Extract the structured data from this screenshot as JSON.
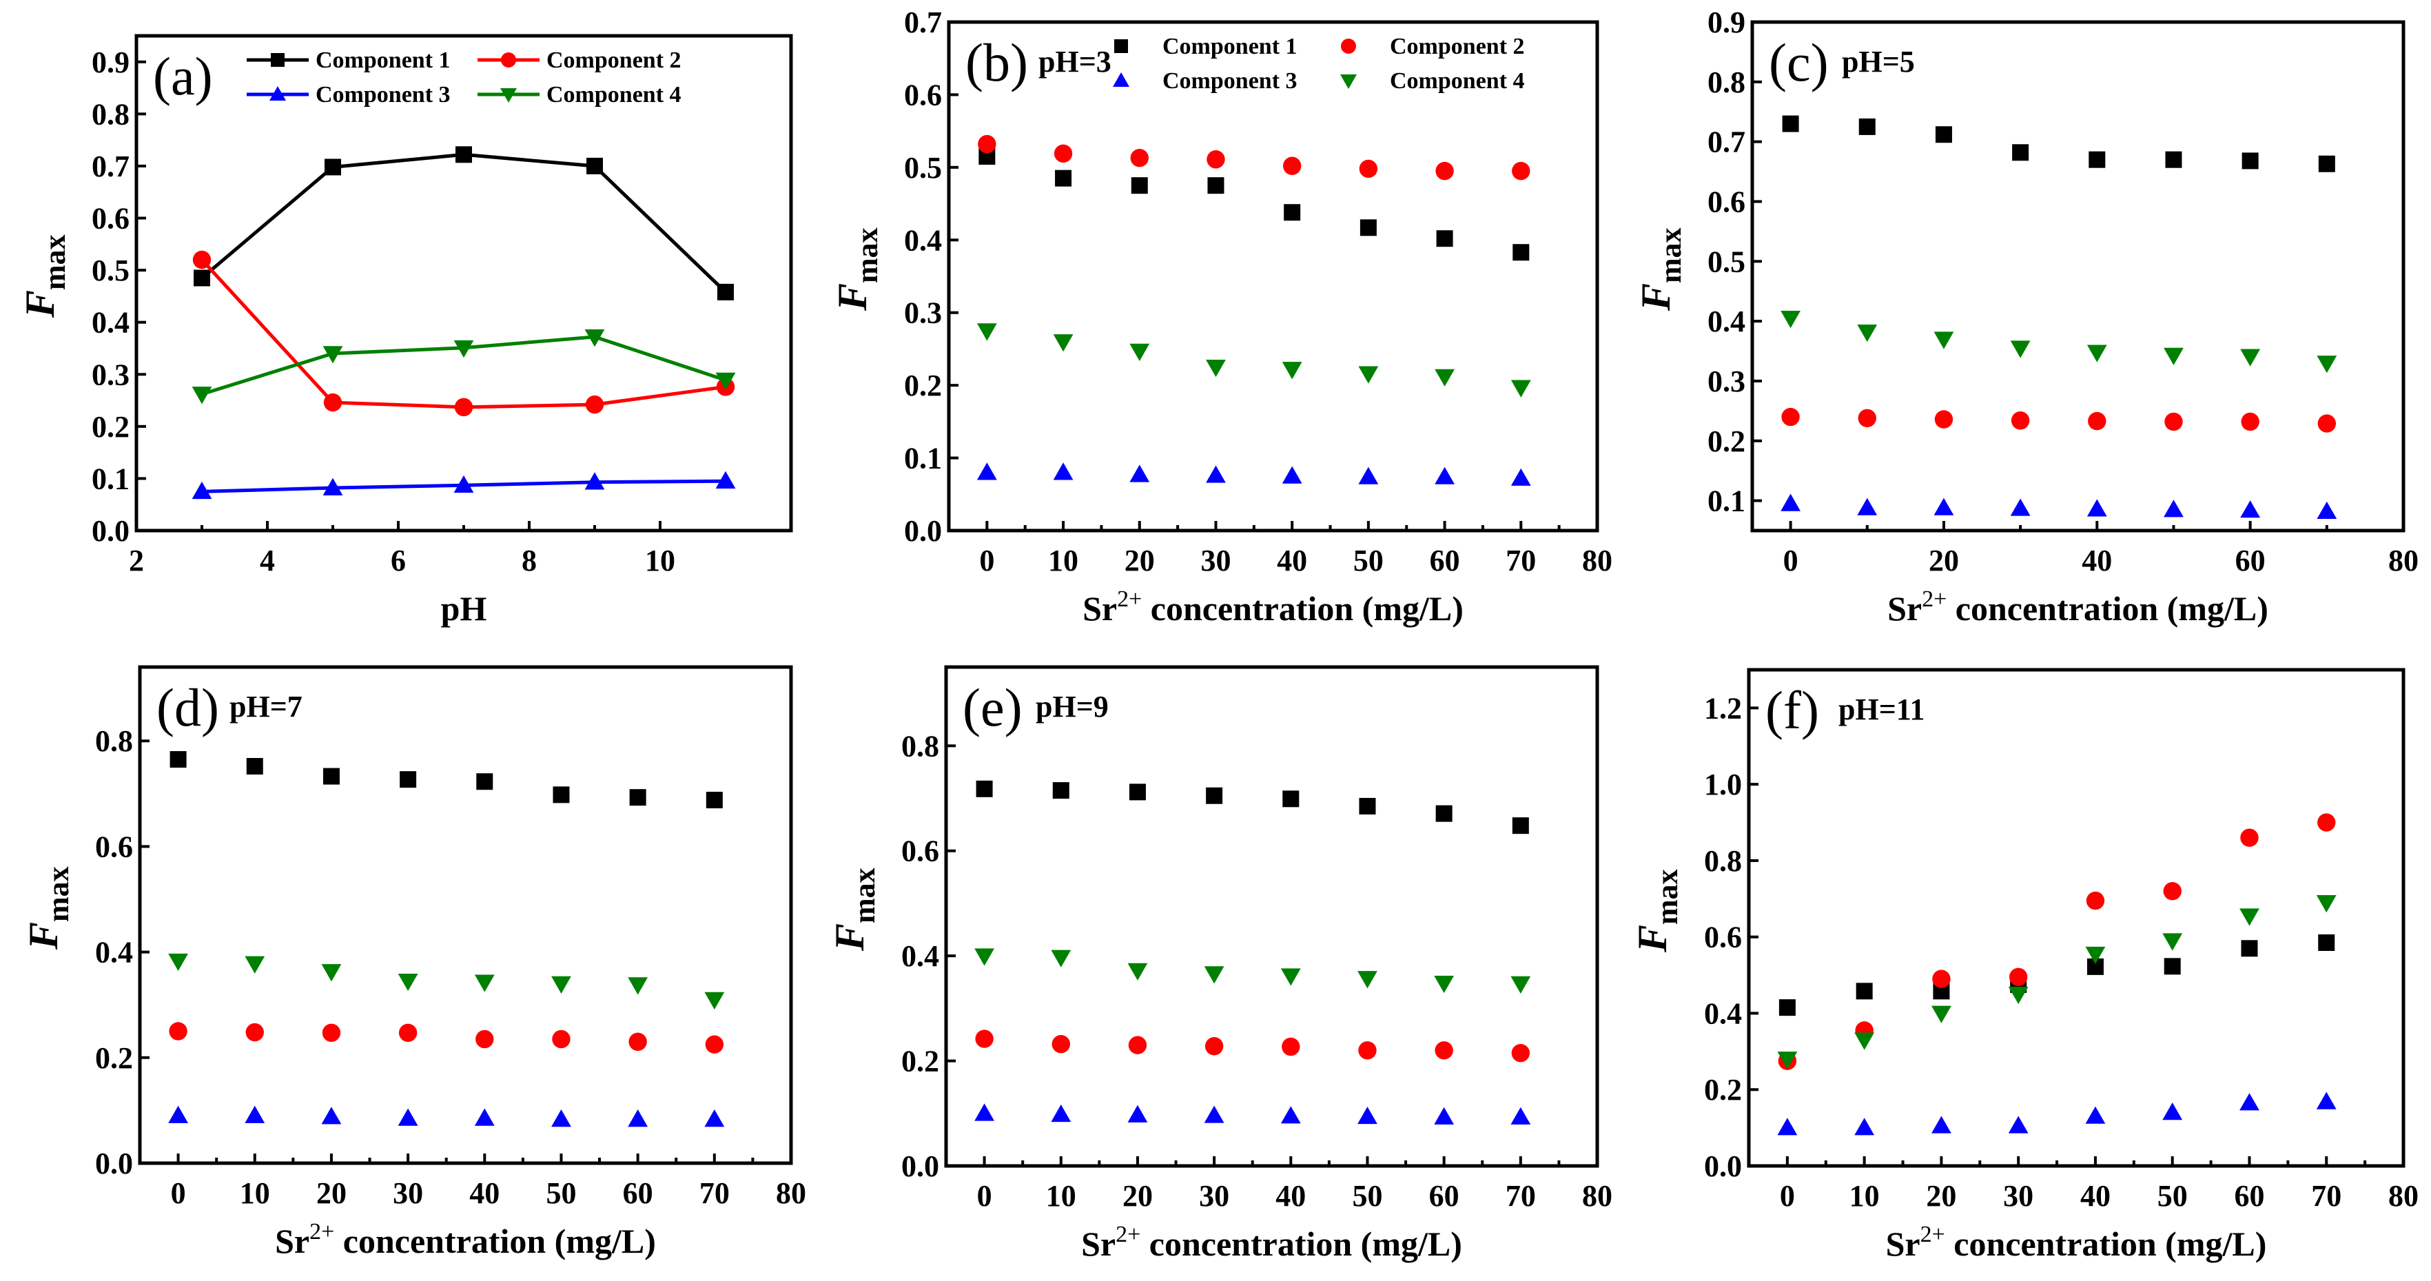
{
  "colors": {
    "c1": "#000000",
    "c2": "#ff0000",
    "c3": "#0000ff",
    "c4": "#008000"
  },
  "legend_labels": [
    "Component 1",
    "Component 2",
    "Component 3",
    "Component 4"
  ],
  "ylabel_main": "F",
  "ylabel_sub": "max",
  "chart_data": [
    {
      "type": "line",
      "panel": "(a)",
      "subtitle": "",
      "xlabel": "pH",
      "xlim": [
        2,
        12
      ],
      "xticks": [
        2,
        4,
        6,
        8,
        10
      ],
      "ylim": [
        0,
        0.95
      ],
      "yticks": [
        0.0,
        0.1,
        0.2,
        0.3,
        0.4,
        0.5,
        0.6,
        0.7,
        0.8,
        0.9
      ],
      "legend": "top-right",
      "legend_style": "line",
      "x": [
        3,
        5,
        7,
        9,
        11
      ],
      "series": [
        {
          "name": "Component 1",
          "values": [
            0.485,
            0.698,
            0.722,
            0.7,
            0.458
          ]
        },
        {
          "name": "Component 2",
          "values": [
            0.52,
            0.246,
            0.237,
            0.242,
            0.276
          ]
        },
        {
          "name": "Component 3",
          "values": [
            0.075,
            0.082,
            0.087,
            0.093,
            0.095
          ]
        },
        {
          "name": "Component 4",
          "values": [
            0.262,
            0.34,
            0.351,
            0.372,
            0.289
          ]
        }
      ]
    },
    {
      "type": "scatter",
      "panel": "(b)",
      "subtitle": "pH=3",
      "xlabel": "Sr2+ concentration (mg/L)",
      "xlim": [
        -5,
        80
      ],
      "xticks": [
        0,
        10,
        20,
        30,
        40,
        50,
        60,
        70,
        80
      ],
      "ylim": [
        0,
        0.7
      ],
      "yticks": [
        0.0,
        0.1,
        0.2,
        0.3,
        0.4,
        0.5,
        0.6,
        0.7
      ],
      "legend": "top-right",
      "legend_style": "marker",
      "x": [
        0,
        10,
        20,
        30,
        40,
        50,
        60,
        70
      ],
      "series": [
        {
          "name": "Component 1",
          "values": [
            0.515,
            0.485,
            0.475,
            0.475,
            0.438,
            0.417,
            0.402,
            0.383
          ]
        },
        {
          "name": "Component 2",
          "values": [
            0.532,
            0.519,
            0.513,
            0.511,
            0.502,
            0.498,
            0.495,
            0.495
          ]
        },
        {
          "name": "Component 3",
          "values": [
            0.08,
            0.08,
            0.077,
            0.076,
            0.075,
            0.074,
            0.074,
            0.072
          ]
        },
        {
          "name": "Component 4",
          "values": [
            0.275,
            0.26,
            0.247,
            0.225,
            0.222,
            0.216,
            0.212,
            0.197
          ]
        }
      ]
    },
    {
      "type": "scatter",
      "panel": "(c)",
      "subtitle": "pH=5",
      "xlabel": "Sr2+ concentration (mg/L)",
      "xlim": [
        -5,
        80
      ],
      "xticks": [
        0,
        20,
        40,
        60,
        80
      ],
      "ylim": [
        0.05,
        0.9
      ],
      "yticks": [
        0.1,
        0.2,
        0.3,
        0.4,
        0.5,
        0.6,
        0.7,
        0.8,
        0.9
      ],
      "legend": "none",
      "x": [
        0,
        10,
        20,
        30,
        40,
        50,
        60,
        70
      ],
      "series": [
        {
          "name": "Component 1",
          "values": [
            0.73,
            0.725,
            0.712,
            0.682,
            0.67,
            0.67,
            0.668,
            0.663
          ]
        },
        {
          "name": "Component 2",
          "values": [
            0.24,
            0.238,
            0.236,
            0.234,
            0.233,
            0.232,
            0.232,
            0.229
          ]
        },
        {
          "name": "Component 3",
          "values": [
            0.095,
            0.088,
            0.088,
            0.087,
            0.086,
            0.085,
            0.084,
            0.082
          ]
        },
        {
          "name": "Component 4",
          "values": [
            0.405,
            0.382,
            0.37,
            0.355,
            0.348,
            0.343,
            0.341,
            0.33
          ]
        }
      ]
    },
    {
      "type": "scatter",
      "panel": "(d)",
      "subtitle": "pH=7",
      "xlabel": "Sr2+ concentration (mg/L)",
      "xlim": [
        -5,
        80
      ],
      "xticks": [
        0,
        10,
        20,
        30,
        40,
        50,
        60,
        70,
        80
      ],
      "ylim": [
        0,
        0.94
      ],
      "yticks": [
        0.0,
        0.2,
        0.4,
        0.6,
        0.8
      ],
      "legend": "none",
      "x": [
        0,
        10,
        20,
        30,
        40,
        50,
        60,
        70
      ],
      "series": [
        {
          "name": "Component 1",
          "values": [
            0.765,
            0.752,
            0.733,
            0.727,
            0.723,
            0.698,
            0.693,
            0.688
          ]
        },
        {
          "name": "Component 2",
          "values": [
            0.25,
            0.248,
            0.247,
            0.247,
            0.235,
            0.235,
            0.23,
            0.225
          ]
        },
        {
          "name": "Component 3",
          "values": [
            0.09,
            0.09,
            0.088,
            0.085,
            0.085,
            0.083,
            0.083,
            0.083
          ]
        },
        {
          "name": "Component 4",
          "values": [
            0.383,
            0.378,
            0.363,
            0.345,
            0.343,
            0.34,
            0.338,
            0.31
          ]
        }
      ]
    },
    {
      "type": "scatter",
      "panel": "(e)",
      "subtitle": "pH=9",
      "xlabel": "Sr2+ concentration (mg/L)",
      "xlim": [
        -5,
        80
      ],
      "xticks": [
        0,
        10,
        20,
        30,
        40,
        50,
        60,
        70,
        80
      ],
      "ylim": [
        0,
        0.95
      ],
      "yticks": [
        0.0,
        0.2,
        0.4,
        0.6,
        0.8
      ],
      "legend": "none",
      "x": [
        0,
        10,
        20,
        30,
        40,
        50,
        60,
        70
      ],
      "series": [
        {
          "name": "Component 1",
          "values": [
            0.718,
            0.715,
            0.712,
            0.705,
            0.699,
            0.685,
            0.671,
            0.648
          ]
        },
        {
          "name": "Component 2",
          "values": [
            0.242,
            0.232,
            0.23,
            0.228,
            0.227,
            0.22,
            0.22,
            0.215
          ]
        },
        {
          "name": "Component 3",
          "values": [
            0.1,
            0.098,
            0.097,
            0.096,
            0.095,
            0.094,
            0.093,
            0.093
          ]
        },
        {
          "name": "Component 4",
          "values": [
            0.4,
            0.397,
            0.372,
            0.366,
            0.362,
            0.357,
            0.348,
            0.347
          ]
        }
      ]
    },
    {
      "type": "scatter",
      "panel": "(f)",
      "subtitle": "pH=11",
      "xlabel": "Sr2+ concentration (mg/L)",
      "xlim": [
        -5,
        80
      ],
      "xticks": [
        0,
        10,
        20,
        30,
        40,
        50,
        60,
        70,
        80
      ],
      "ylim": [
        0,
        1.3
      ],
      "yticks": [
        0.0,
        0.2,
        0.4,
        0.6,
        0.8,
        1.0,
        1.2
      ],
      "legend": "none",
      "x": [
        0,
        10,
        20,
        30,
        40,
        50,
        60,
        70
      ],
      "series": [
        {
          "name": "Component 1",
          "values": [
            0.415,
            0.458,
            0.458,
            0.475,
            0.522,
            0.523,
            0.57,
            0.585
          ]
        },
        {
          "name": "Component 2",
          "values": [
            0.275,
            0.355,
            0.49,
            0.495,
            0.695,
            0.72,
            0.86,
            0.9
          ]
        },
        {
          "name": "Component 3",
          "values": [
            0.1,
            0.1,
            0.105,
            0.105,
            0.13,
            0.14,
            0.165,
            0.168
          ]
        },
        {
          "name": "Component 4",
          "values": [
            0.28,
            0.33,
            0.4,
            0.45,
            0.555,
            0.59,
            0.655,
            0.69
          ]
        }
      ]
    }
  ]
}
